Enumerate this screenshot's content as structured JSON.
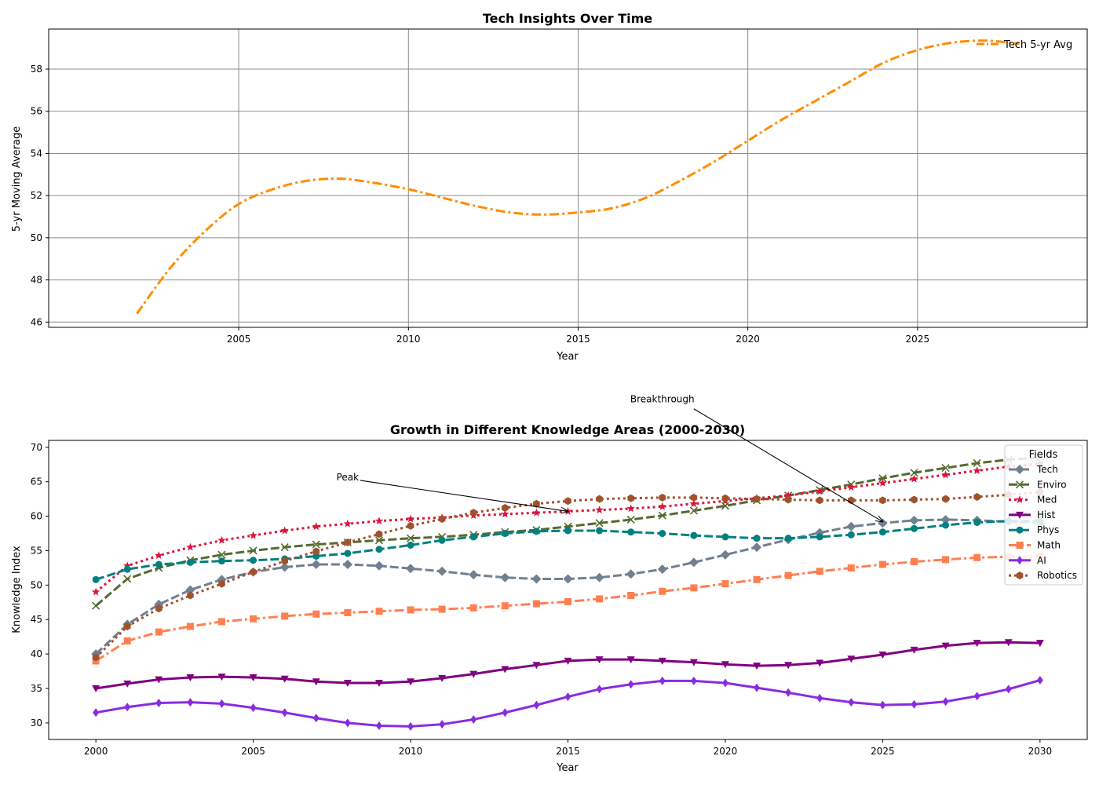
{
  "colors": {
    "avg": "#ff8c00",
    "grid": "#8c8c8c",
    "legend_border": "#cccccc"
  },
  "chart_data": [
    {
      "type": "line",
      "title": "Tech Insights Over Time",
      "xlabel": "Year",
      "ylabel": "5-yr Moving Average",
      "xlim": [
        1999.4,
        2030.0
      ],
      "ylim": [
        45.75,
        59.9
      ],
      "xticks": [
        2005,
        2010,
        2015,
        2020,
        2025
      ],
      "yticks": [
        46,
        48,
        50,
        52,
        54,
        56,
        58
      ],
      "grid": true,
      "legend": "upper-right",
      "series": [
        {
          "name": "Tech 5-yr Avg",
          "color": "#ff8c00",
          "linestyle": "dashdot",
          "x": [
            2002,
            2003,
            2004,
            2005,
            2006,
            2007,
            2008,
            2009,
            2010,
            2011,
            2012,
            2013,
            2014,
            2015,
            2016,
            2017,
            2018,
            2019,
            2020,
            2021,
            2022,
            2023,
            2024,
            2025,
            2026,
            2027,
            2028
          ],
          "y": [
            46.4,
            48.6,
            50.3,
            51.6,
            52.3,
            52.7,
            52.8,
            52.6,
            52.3,
            51.9,
            51.5,
            51.2,
            51.1,
            51.2,
            51.4,
            51.9,
            52.7,
            53.6,
            54.6,
            55.6,
            56.5,
            57.4,
            58.3,
            58.9,
            59.25,
            59.35,
            59.2
          ]
        }
      ]
    },
    {
      "type": "line",
      "title": "Growth in Different Knowledge Areas (2000-2030)",
      "xlabel": "Year",
      "ylabel": "Knowledge Index",
      "xlim": [
        1998.5,
        2031.5
      ],
      "ylim": [
        27.6,
        71.0
      ],
      "xticks": [
        2000,
        2005,
        2010,
        2015,
        2020,
        2025,
        2030
      ],
      "yticks": [
        30,
        35,
        40,
        45,
        50,
        55,
        60,
        65,
        70
      ],
      "grid": false,
      "legend_title": "Fields",
      "legend": "upper-right",
      "annotations": [
        {
          "text": "Peak",
          "text_xy": [
            2008,
            65.2
          ],
          "point_xy": [
            2015,
            60.7
          ]
        },
        {
          "text": "Breakthrough",
          "text_xy": [
            2018,
            76.5
          ],
          "point_xy": [
            2025,
            59.2
          ]
        }
      ],
      "x": [
        2000,
        2001,
        2002,
        2003,
        2004,
        2005,
        2006,
        2007,
        2008,
        2009,
        2010,
        2011,
        2012,
        2013,
        2014,
        2015,
        2016,
        2017,
        2018,
        2019,
        2020,
        2021,
        2022,
        2023,
        2024,
        2025,
        2026,
        2027,
        2028,
        2029,
        2030
      ],
      "series": [
        {
          "name": "Tech",
          "color": "#708090",
          "linestyle": "dashed",
          "marker": "diamond",
          "values": [
            40.0,
            44.3,
            47.2,
            49.3,
            50.8,
            51.9,
            52.6,
            53.0,
            53.0,
            52.8,
            52.4,
            52.0,
            51.5,
            51.1,
            50.9,
            50.9,
            51.1,
            51.6,
            52.3,
            53.3,
            54.4,
            55.5,
            56.6,
            57.6,
            58.5,
            59.0,
            59.4,
            59.5,
            59.4,
            59.2,
            59.0
          ]
        },
        {
          "name": "Enviro",
          "color": "#556b2f",
          "linestyle": "dashed",
          "marker": "x",
          "values": [
            47.0,
            50.9,
            52.5,
            53.6,
            54.4,
            55.0,
            55.5,
            55.9,
            56.2,
            56.5,
            56.8,
            57.0,
            57.3,
            57.7,
            58.0,
            58.5,
            59.0,
            59.5,
            60.1,
            60.8,
            61.5,
            62.3,
            63.0,
            63.8,
            64.6,
            65.5,
            66.3,
            67.0,
            67.7,
            68.2,
            68.5
          ]
        },
        {
          "name": "Med",
          "color": "#dc143c",
          "linestyle": "dotted",
          "marker": "star",
          "values": [
            49.0,
            52.8,
            54.3,
            55.5,
            56.5,
            57.2,
            57.9,
            58.5,
            58.9,
            59.3,
            59.6,
            59.8,
            60.1,
            60.3,
            60.5,
            60.7,
            60.9,
            61.1,
            61.4,
            61.8,
            62.2,
            62.6,
            63.0,
            63.6,
            64.2,
            64.8,
            65.4,
            66.0,
            66.6,
            67.2,
            67.6
          ]
        },
        {
          "name": "Hist",
          "color": "#800080",
          "linestyle": "solid",
          "marker": "triangle-down",
          "values": [
            35.0,
            35.7,
            36.3,
            36.6,
            36.7,
            36.6,
            36.4,
            36.0,
            35.8,
            35.8,
            36.0,
            36.5,
            37.1,
            37.8,
            38.4,
            39.0,
            39.2,
            39.2,
            39.0,
            38.8,
            38.5,
            38.3,
            38.4,
            38.7,
            39.3,
            39.9,
            40.6,
            41.2,
            41.6,
            41.7,
            41.6
          ]
        },
        {
          "name": "Phys",
          "color": "#008080",
          "linestyle": "dashed",
          "marker": "circle",
          "values": [
            50.8,
            52.3,
            53.0,
            53.3,
            53.5,
            53.6,
            53.8,
            54.2,
            54.6,
            55.2,
            55.8,
            56.5,
            57.0,
            57.5,
            57.8,
            57.9,
            57.9,
            57.7,
            57.5,
            57.2,
            57.0,
            56.8,
            56.8,
            57.0,
            57.3,
            57.7,
            58.2,
            58.7,
            59.1,
            59.3,
            59.3
          ]
        },
        {
          "name": "Math",
          "color": "#ff7f50",
          "linestyle": "dashdot",
          "marker": "square",
          "values": [
            39.0,
            41.9,
            43.2,
            44.0,
            44.7,
            45.1,
            45.5,
            45.8,
            46.0,
            46.2,
            46.4,
            46.5,
            46.7,
            47.0,
            47.3,
            47.6,
            48.0,
            48.5,
            49.1,
            49.6,
            50.2,
            50.8,
            51.4,
            52.0,
            52.5,
            53.0,
            53.4,
            53.7,
            54.0,
            54.1,
            54.2
          ]
        },
        {
          "name": "AI",
          "color": "#8a2be2",
          "linestyle": "solid",
          "marker": "thin-diamond",
          "values": [
            31.5,
            32.3,
            32.9,
            33.0,
            32.8,
            32.2,
            31.5,
            30.7,
            30.0,
            29.6,
            29.5,
            29.8,
            30.5,
            31.5,
            32.6,
            33.8,
            34.9,
            35.6,
            36.1,
            36.1,
            35.8,
            35.1,
            34.4,
            33.6,
            33.0,
            32.6,
            32.7,
            33.1,
            33.9,
            34.9,
            36.2
          ]
        },
        {
          "name": "Robotics",
          "color": "#a0522d",
          "linestyle": "dotted",
          "marker": "hexagon",
          "values": [
            39.5,
            44.0,
            46.6,
            48.5,
            50.2,
            51.9,
            53.5,
            54.9,
            56.2,
            57.4,
            58.6,
            59.6,
            60.5,
            61.2,
            61.8,
            62.2,
            62.5,
            62.6,
            62.7,
            62.7,
            62.6,
            62.5,
            62.4,
            62.3,
            62.3,
            62.3,
            62.4,
            62.5,
            62.8,
            63.1,
            63.5
          ]
        }
      ]
    }
  ]
}
